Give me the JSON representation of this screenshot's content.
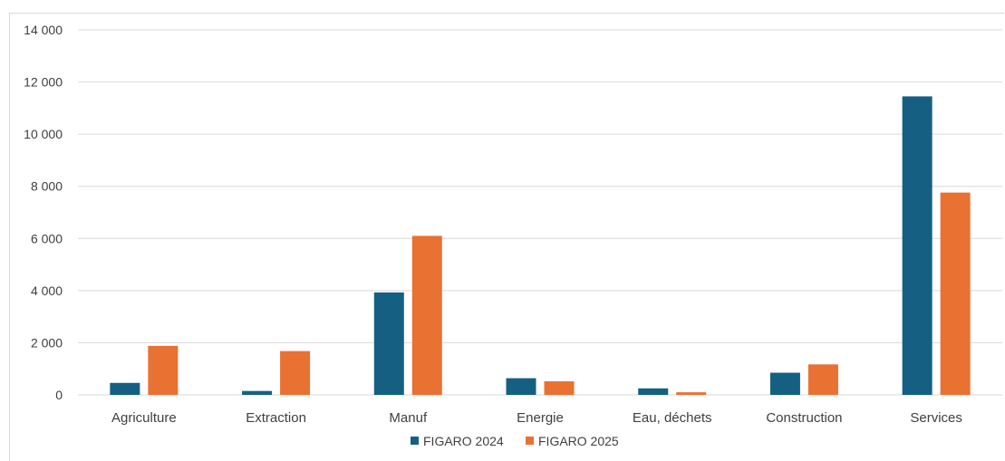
{
  "chart_data": {
    "type": "bar",
    "title": "",
    "xlabel": "",
    "ylabel": "",
    "categories": [
      "Agriculture",
      "Extraction",
      "Manuf",
      "Energie",
      "Eau, déchets",
      "Construction",
      "Services"
    ],
    "series": [
      {
        "name": "FIGARO 2024",
        "color": "#156082",
        "values": [
          460,
          150,
          3930,
          640,
          250,
          850,
          11450
        ]
      },
      {
        "name": "FIGARO 2025",
        "color": "#E97132",
        "values": [
          1880,
          1680,
          6100,
          520,
          100,
          1170,
          7760
        ]
      }
    ],
    "ylim": [
      0,
      14000
    ],
    "yticks": [
      0,
      2000,
      4000,
      6000,
      8000,
      10000,
      12000,
      14000
    ],
    "ytick_labels": [
      "0",
      "2 000",
      "4 000",
      "6 000",
      "8 000",
      "10 000",
      "12 000",
      "14 000"
    ],
    "grid": true,
    "legend_position": "bottom"
  }
}
